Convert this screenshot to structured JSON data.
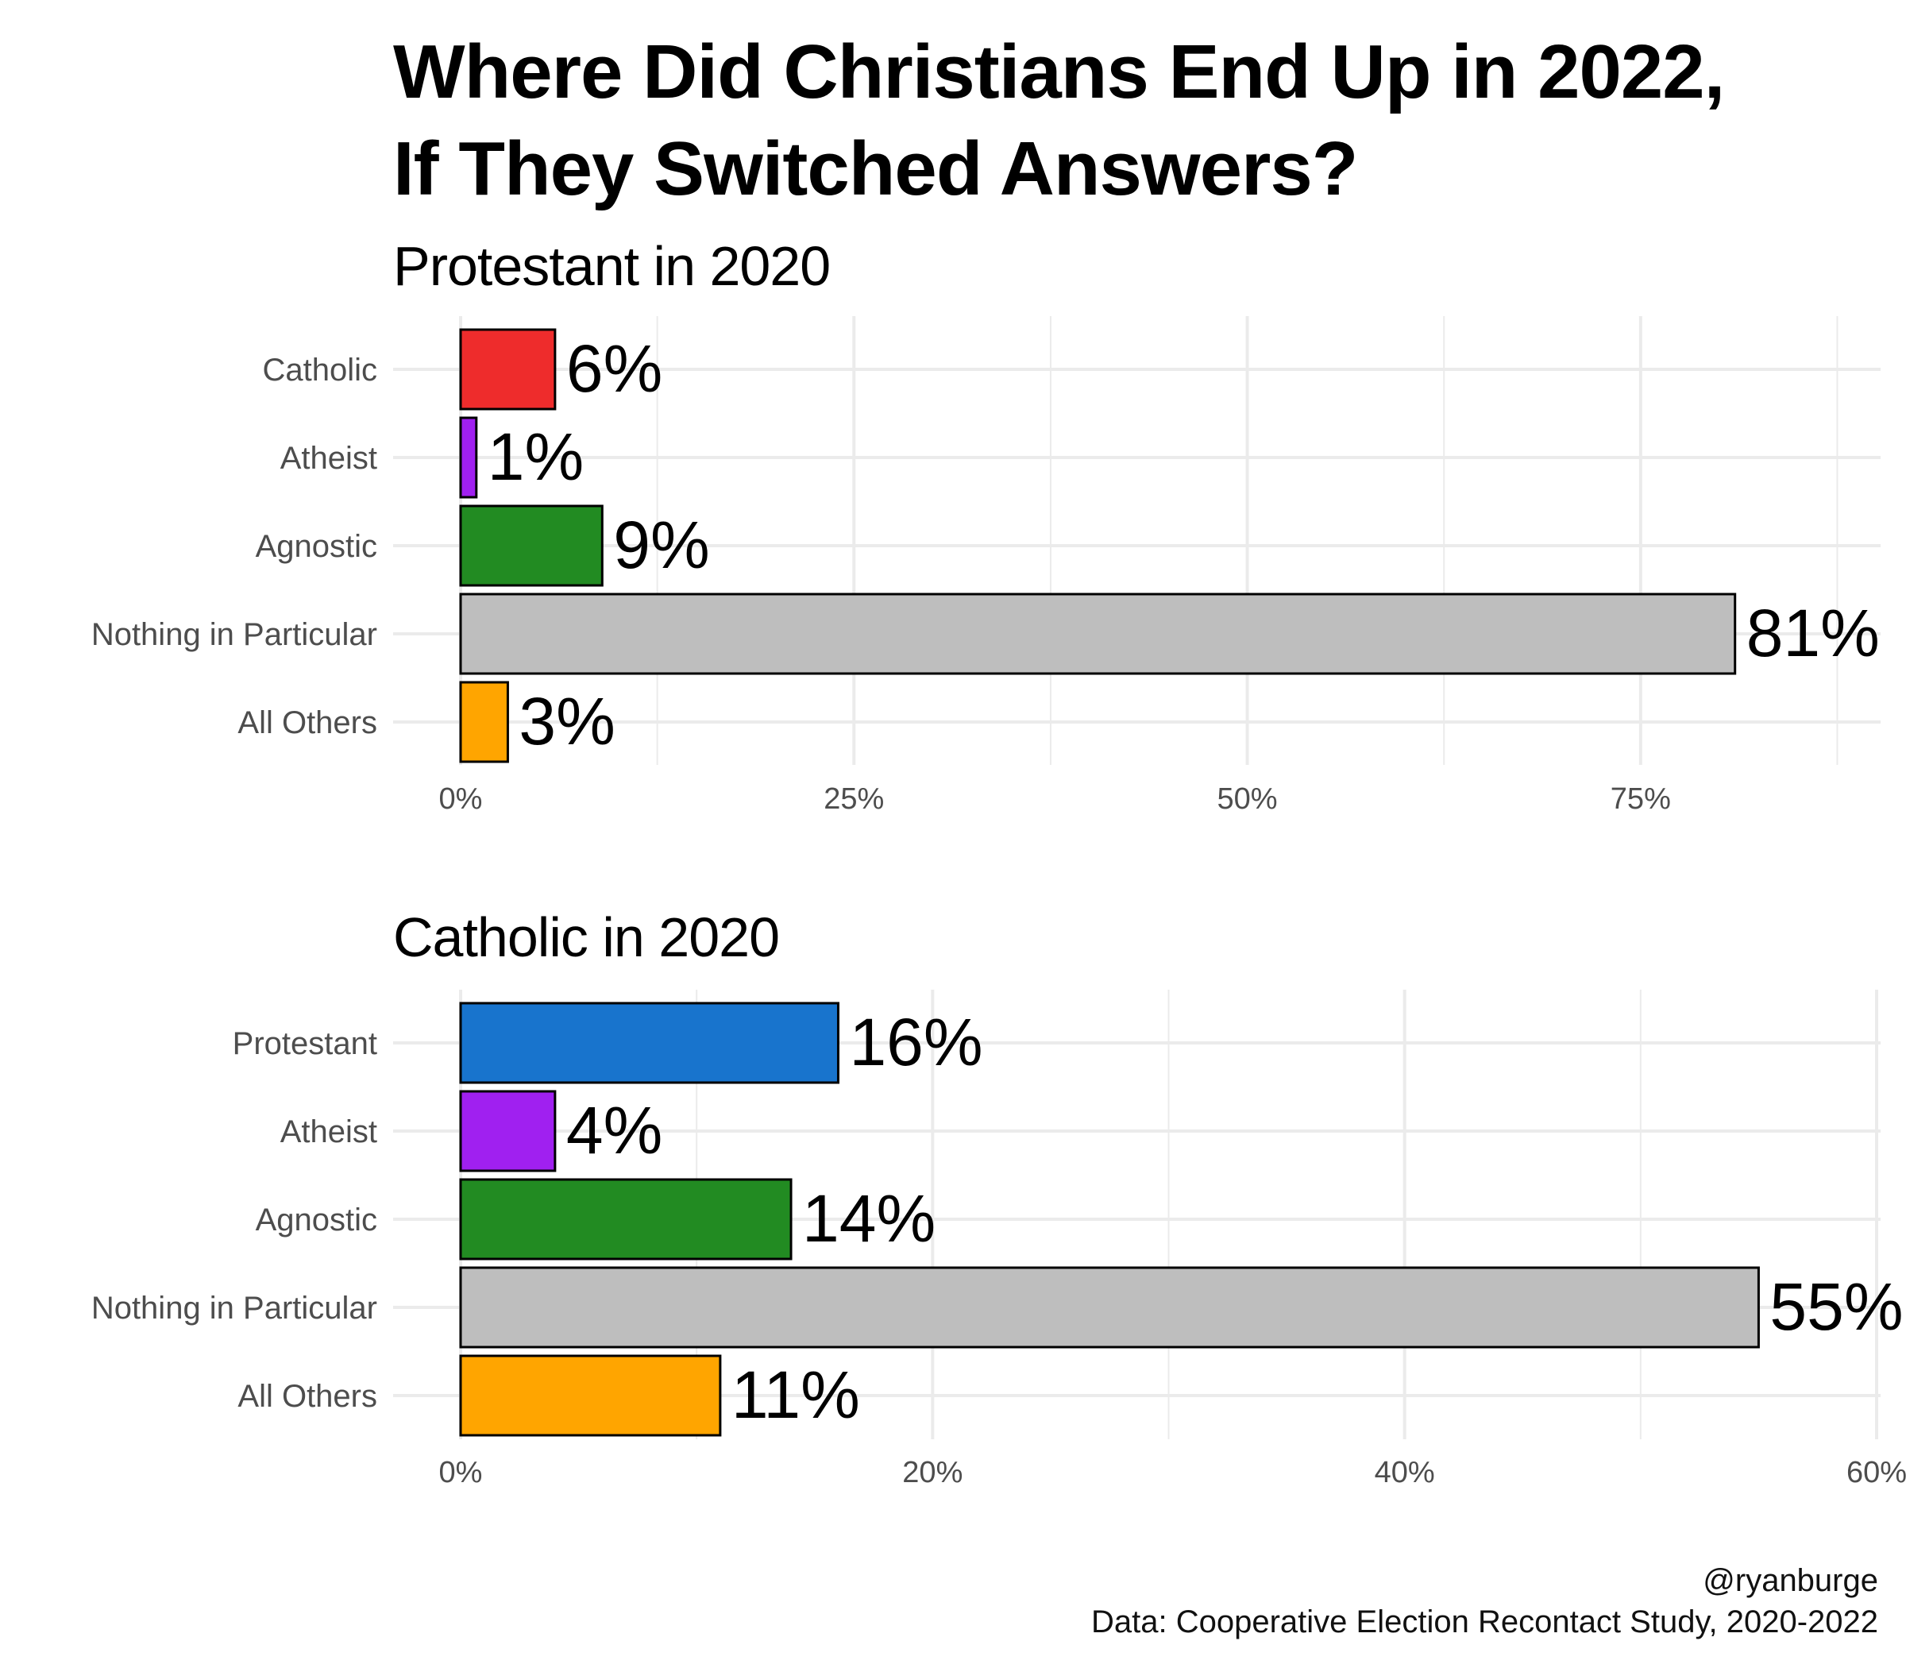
{
  "title_line1": "Where Did Christians End Up in 2022,",
  "title_line2": "If They Switched Answers?",
  "caption_line1": "@ryanburge",
  "caption_line2": "Data: Cooperative Election Recontact Study, 2020-2022",
  "chart_data": [
    {
      "type": "bar",
      "orientation": "horizontal",
      "title": "Protestant in 2020",
      "categories": [
        "Catholic",
        "Atheist",
        "Agnostic",
        "Nothing in Particular",
        "All Others"
      ],
      "values": [
        6,
        1,
        9,
        81,
        3
      ],
      "value_labels": [
        "6%",
        "1%",
        "9%",
        "81%",
        "3%"
      ],
      "colors": [
        "#EE2C2C",
        "#A020F0",
        "#228B22",
        "#BEBEBE",
        "#FFA500"
      ],
      "xlim": [
        0,
        90
      ],
      "xticks": [
        0,
        25,
        50,
        75
      ],
      "xtick_labels": [
        "0%",
        "25%",
        "50%",
        "75%"
      ],
      "grid": true,
      "xlabel": "",
      "ylabel": ""
    },
    {
      "type": "bar",
      "orientation": "horizontal",
      "title": "Catholic in 2020",
      "categories": [
        "Protestant",
        "Atheist",
        "Agnostic",
        "Nothing in Particular",
        "All Others"
      ],
      "values": [
        16,
        4,
        14,
        55,
        11
      ],
      "value_labels": [
        "16%",
        "4%",
        "14%",
        "55%",
        "11%"
      ],
      "colors": [
        "#1874CD",
        "#A020F0",
        "#228B22",
        "#BEBEBE",
        "#FFA500"
      ],
      "xlim": [
        0,
        60
      ],
      "xticks": [
        0,
        20,
        40,
        60
      ],
      "xtick_labels": [
        "0%",
        "20%",
        "40%",
        "60%"
      ],
      "grid": true,
      "xlabel": "",
      "ylabel": ""
    }
  ]
}
